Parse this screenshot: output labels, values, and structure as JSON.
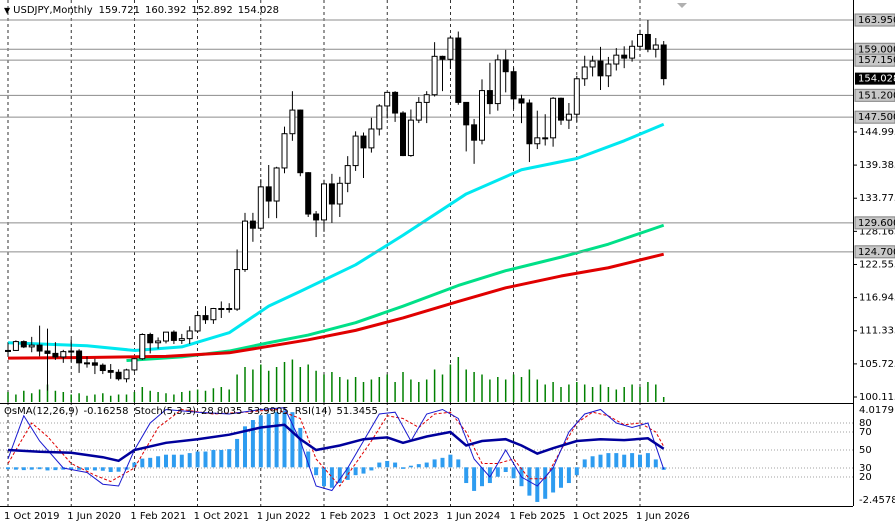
{
  "chart_data": {
    "type": "candlestick",
    "symbol": "USDJPY,Monthly",
    "categories": [
      "1 Oct 2019",
      null,
      null,
      null,
      null,
      null,
      null,
      null,
      "1 Jun 2020",
      null,
      null,
      null,
      null,
      null,
      null,
      null,
      "1 Feb 2021",
      null,
      null,
      null,
      null,
      null,
      null,
      null,
      "1 Oct 2021",
      null,
      null,
      null,
      null,
      null,
      null,
      null,
      "1 Jun 2022",
      null,
      null,
      null,
      null,
      null,
      null,
      null,
      "1 Feb 2023",
      null,
      null,
      null,
      null,
      null,
      null,
      null,
      "1 Oct 2023",
      null,
      null,
      null,
      null,
      null,
      null,
      null,
      "1 Jun 2024",
      null,
      null,
      null,
      null,
      null,
      null,
      null,
      "1 Feb 2025",
      null,
      null,
      null,
      null,
      null,
      null,
      null,
      "1 Oct 2025",
      null,
      null,
      null,
      null,
      null,
      null,
      null,
      "1 Jun 2026",
      null,
      null,
      null
    ],
    "open": [
      107.9,
      108.0,
      109.5,
      108.6,
      108.9,
      107.9,
      107.5,
      106.9,
      107.8,
      107.9,
      105.9,
      105.9,
      105.5,
      104.6,
      104.3,
      103.2,
      104.7,
      106.6,
      110.7,
      109.3,
      109.6,
      111.1,
      109.7,
      110.0,
      111.3,
      113.9,
      113.2,
      115.1,
      115.1,
      115.0,
      121.7,
      129.9,
      128.7,
      135.7,
      133.3,
      138.9,
      144.7,
      148.7,
      138.1,
      131.1,
      130.1,
      136.2,
      132.8,
      136.3,
      139.3,
      144.3,
      142.3,
      145.5,
      149.4,
      151.7,
      148.2,
      141.0,
      147.0,
      150.0,
      151.3,
      157.8,
      157.3,
      160.9,
      150.0,
      146.2,
      143.6,
      152.0,
      149.8,
      157.2,
      155.2,
      150.6,
      149.9,
      143.0,
      144.0,
      144.0,
      150.7,
      147.0,
      148.0,
      154.0,
      156.0,
      157.0,
      154.5,
      156.5,
      158.0,
      157.5,
      159.5,
      161.5,
      159.0,
      159.721
    ],
    "high": [
      109.3,
      109.7,
      109.7,
      110.3,
      112.2,
      111.7,
      109.4,
      108.1,
      109.9,
      108.2,
      107.0,
      106.6,
      105.8,
      105.7,
      104.8,
      104.9,
      106.7,
      110.9,
      111.0,
      110.2,
      111.1,
      111.4,
      110.8,
      112.1,
      114.7,
      115.5,
      115.2,
      116.3,
      116.0,
      125.1,
      131.3,
      131.3,
      137.0,
      139.4,
      139.1,
      145.9,
      151.9,
      148.8,
      138.2,
      131.6,
      136.9,
      137.9,
      137.4,
      140.9,
      145.1,
      144.9,
      147.4,
      149.7,
      151.7,
      151.9,
      148.5,
      148.8,
      150.9,
      151.9,
      160.2,
      157.9,
      161.3,
      162.0,
      150.0,
      147.2,
      153.9,
      156.7,
      158.1,
      158.9,
      155.9,
      151.3,
      150.5,
      148.6,
      148.0,
      150.9,
      150.8,
      149.9,
      154.5,
      157.9,
      157.9,
      159.4,
      157.7,
      159.2,
      159.5,
      160.5,
      162.3,
      163.95,
      160.9,
      160.392
    ],
    "low": [
      107.0,
      107.9,
      108.4,
      107.7,
      107.0,
      101.2,
      106.4,
      105.9,
      106.1,
      104.2,
      105.1,
      104.0,
      104.0,
      103.2,
      102.9,
      102.6,
      104.4,
      106.4,
      107.5,
      108.3,
      109.2,
      109.1,
      109.1,
      109.1,
      111.0,
      112.5,
      112.5,
      113.5,
      114.4,
      114.7,
      121.3,
      126.4,
      128.6,
      130.4,
      130.4,
      138.0,
      143.5,
      137.5,
      130.6,
      127.2,
      128.1,
      129.6,
      130.6,
      134.8,
      138.4,
      137.2,
      141.5,
      144.4,
      147.3,
      146.7,
      140.9,
      140.8,
      146.5,
      146.5,
      151.0,
      151.9,
      155.7,
      149.6,
      141.7,
      139.6,
      142.9,
      148.0,
      148.6,
      151.7,
      148.9,
      146.5,
      139.9,
      142.1,
      142.7,
      142.5,
      146.2,
      145.5,
      146.7,
      152.8,
      154.4,
      152.1,
      152.6,
      155.4,
      155.8,
      156.9,
      158.8,
      158.5,
      157.6,
      152.892
    ],
    "close": [
      108.0,
      109.5,
      108.6,
      108.9,
      107.9,
      107.5,
      106.9,
      107.8,
      107.9,
      105.9,
      105.9,
      105.5,
      104.6,
      104.3,
      103.2,
      104.7,
      106.6,
      110.7,
      109.3,
      109.6,
      111.1,
      109.7,
      110.0,
      111.3,
      113.9,
      113.2,
      115.1,
      115.1,
      115.0,
      121.7,
      129.9,
      128.7,
      135.7,
      133.3,
      138.9,
      144.7,
      148.7,
      138.1,
      131.1,
      130.1,
      136.2,
      132.8,
      136.3,
      139.3,
      144.3,
      142.3,
      145.5,
      149.4,
      151.7,
      148.2,
      141.0,
      147.0,
      150.0,
      151.3,
      157.8,
      157.3,
      160.9,
      150.0,
      146.2,
      143.6,
      152.0,
      149.8,
      157.2,
      155.2,
      150.6,
      149.9,
      143.0,
      144.0,
      144.0,
      150.7,
      147.0,
      148.0,
      154.0,
      156.0,
      157.0,
      154.5,
      156.5,
      158.0,
      157.5,
      159.5,
      161.5,
      159.0,
      159.721,
      154.028
    ],
    "up_color": "#ffffff",
    "down_color": "#000000",
    "ylim": [
      99.27,
      167.34
    ],
    "yticks": [
      100.115,
      105.725,
      111.335,
      116.945,
      122.555,
      128.165,
      133.775,
      139.385,
      144.995
    ],
    "levels": [
      {
        "value": 163.95,
        "label": "163.950"
      },
      {
        "value": 159,
        "label": "159.000"
      },
      {
        "value": 157.15,
        "label": "157.150"
      },
      {
        "value": 151.2,
        "label": "151.200"
      },
      {
        "value": 147.5,
        "label": "147.500"
      },
      {
        "value": 129.6,
        "label": "129.600"
      },
      {
        "value": 124.7,
        "label": "124.700"
      }
    ],
    "moving_averages": [
      {
        "color": "#00e8f0",
        "x": [
          0,
          10,
          16,
          22,
          28,
          33,
          37,
          44,
          50,
          58,
          65,
          72,
          78,
          83
        ],
        "values": [
          109.3,
          108.8,
          108.0,
          108.6,
          111.0,
          115.5,
          118.0,
          122.5,
          127.5,
          134.5,
          138.6,
          140.5,
          143.5,
          146.3
        ]
      },
      {
        "color": "#00e088",
        "x": [
          15,
          22,
          28,
          33,
          38,
          44,
          50,
          57,
          63,
          70,
          76,
          83
        ],
        "values": [
          106.3,
          106.9,
          107.9,
          109.3,
          110.6,
          112.7,
          115.5,
          119.0,
          121.5,
          123.8,
          126.0,
          129.2
        ]
      },
      {
        "color": "#e00000",
        "x": [
          0,
          10,
          20,
          28,
          33,
          38,
          44,
          50,
          57,
          63,
          70,
          76,
          83
        ],
        "values": [
          106.7,
          106.8,
          107.0,
          107.6,
          108.7,
          109.8,
          111.4,
          113.5,
          116.3,
          118.6,
          120.6,
          122.0,
          124.3
        ]
      }
    ],
    "volume": {
      "color": "#008000",
      "values": [
        8,
        6,
        9,
        7,
        10,
        14,
        9,
        8,
        6,
        7,
        5,
        6,
        7,
        5,
        6,
        6,
        8,
        12,
        9,
        8,
        7,
        6,
        8,
        9,
        10,
        9,
        11,
        12,
        10,
        22,
        28,
        26,
        30,
        25,
        28,
        32,
        34,
        28,
        30,
        25,
        22,
        24,
        20,
        18,
        20,
        16,
        18,
        20,
        22,
        16,
        24,
        18,
        16,
        18,
        26,
        22,
        30,
        36,
        26,
        24,
        22,
        18,
        20,
        18,
        22,
        20,
        26,
        18,
        14,
        16,
        12,
        14,
        16,
        14,
        12,
        14,
        12,
        10,
        12,
        14,
        12,
        16,
        14,
        4
      ]
    },
    "oscillator": {
      "ylim": [
        -2.4578,
        4.0179
      ],
      "y2lim": [
        -12.2,
        101.1
      ],
      "y2ticks": [
        80,
        70,
        50,
        30,
        20
      ],
      "osma": {
        "name": "OsMA(12,26,9)",
        "color": "#2e9cf0",
        "values": [
          -0.12,
          -0.15,
          -0.18,
          -0.15,
          -0.12,
          -0.2,
          -0.18,
          -0.15,
          -0.14,
          -0.16,
          -0.18,
          -0.2,
          -0.22,
          -0.3,
          -0.28,
          -0.15,
          0.3,
          0.55,
          0.6,
          0.7,
          0.8,
          0.8,
          0.8,
          0.9,
          1.0,
          1.0,
          1.1,
          1.1,
          1.15,
          1.8,
          2.6,
          3.0,
          3.3,
          3.4,
          3.5,
          3.6,
          3.5,
          2.5,
          1.0,
          -0.5,
          -1.2,
          -1.3,
          -1.0,
          -0.8,
          -0.5,
          -0.4,
          -0.2,
          0.3,
          0.4,
          0.3,
          -0.1,
          0.1,
          0.2,
          0.3,
          0.5,
          0.6,
          0.8,
          0.5,
          -1.0,
          -1.5,
          -1.2,
          -1.0,
          -0.6,
          -0.3,
          -0.7,
          -1.2,
          -1.8,
          -2.2,
          -2.0,
          -1.6,
          -1.3,
          -1.0,
          -0.5,
          0.5,
          0.7,
          0.8,
          0.9,
          0.9,
          0.8,
          0.9,
          0.8,
          0.9,
          0.5,
          -0.16258
        ]
      },
      "stoch": {
        "name": "Stoch(5,3,3)",
        "main": {
          "color": "#1a1ad0",
          "x": [
            0,
            2,
            4,
            7,
            10,
            12,
            14,
            16,
            18,
            20,
            24,
            28,
            32,
            35,
            37,
            39,
            41,
            43,
            45,
            47,
            49,
            51,
            53,
            55,
            57,
            59,
            61,
            63,
            65,
            67,
            69,
            71,
            73,
            75,
            77,
            79,
            81,
            83
          ],
          "values": [
            40,
            88,
            60,
            30,
            25,
            12,
            10,
            50,
            80,
            95,
            92,
            90,
            95,
            97,
            60,
            10,
            5,
            30,
            60,
            90,
            92,
            60,
            90,
            95,
            85,
            40,
            20,
            50,
            20,
            10,
            30,
            70,
            90,
            95,
            80,
            75,
            80,
            28.8035
          ]
        },
        "signal": {
          "color": "#e00000",
          "x": [
            0,
            3,
            5,
            8,
            11,
            13,
            16,
            19,
            22,
            26,
            30,
            34,
            37,
            39,
            42,
            44,
            46,
            48,
            50,
            52,
            54,
            56,
            58,
            60,
            62,
            64,
            66,
            68,
            70,
            72,
            74,
            76,
            78,
            80,
            82,
            83
          ],
          "values": [
            35,
            80,
            65,
            35,
            22,
            15,
            30,
            75,
            95,
            90,
            92,
            95,
            85,
            40,
            10,
            35,
            60,
            88,
            85,
            75,
            90,
            92,
            70,
            35,
            35,
            40,
            18,
            18,
            50,
            80,
            92,
            88,
            78,
            80,
            70,
            53.9905
          ]
        }
      },
      "rsi": {
        "name": "RSI(14)",
        "color": "#00009c",
        "x": [
          0,
          4,
          8,
          12,
          14,
          16,
          20,
          24,
          28,
          32,
          35,
          37,
          39,
          42,
          45,
          48,
          50,
          53,
          56,
          58,
          60,
          63,
          65,
          67,
          69,
          72,
          75,
          78,
          81,
          83
        ],
        "values": [
          50,
          48,
          47,
          42,
          38,
          50,
          58,
          62,
          67,
          75,
          78,
          62,
          50,
          55,
          62,
          64,
          58,
          65,
          70,
          55,
          60,
          62,
          55,
          46,
          52,
          60,
          62,
          61,
          63,
          51.3455
        ]
      }
    }
  }
}
